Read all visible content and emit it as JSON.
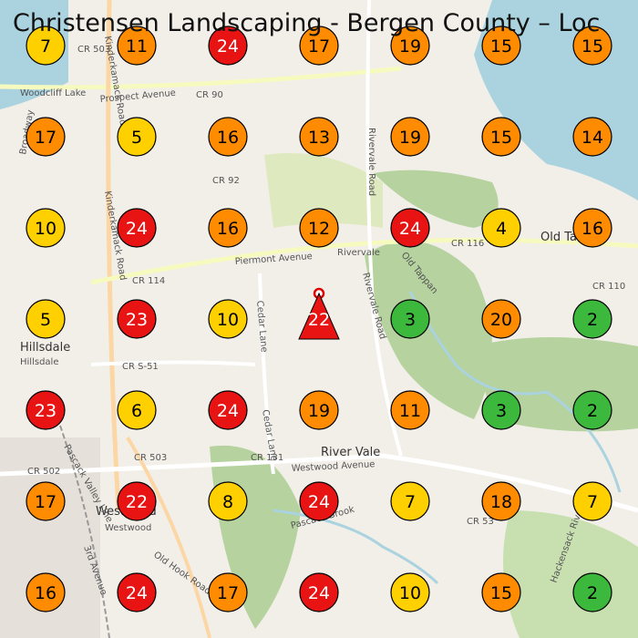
{
  "title": "Christensen Landscaping - Bergen County – Loc",
  "grid": {
    "rows": [
      [
        7,
        11,
        24,
        17,
        19,
        15,
        15
      ],
      [
        17,
        5,
        16,
        13,
        19,
        15,
        14
      ],
      [
        10,
        24,
        16,
        12,
        24,
        4,
        16
      ],
      [
        5,
        23,
        10,
        22,
        3,
        20,
        2
      ],
      [
        23,
        6,
        24,
        19,
        11,
        3,
        2
      ],
      [
        17,
        22,
        8,
        24,
        7,
        18,
        7
      ],
      [
        16,
        24,
        17,
        24,
        10,
        15,
        2
      ]
    ]
  },
  "map_labels": [
    "Woodcliff Lake",
    "Hillsdale",
    "Hillsdale",
    "Westwood",
    "Westwood",
    "River Vale",
    "Old Ta",
    "Prospect Avenue",
    "CR 90",
    "CR 503",
    "CR 92",
    "CR 116",
    "CR 114",
    "CR 110",
    "Piermont Avenue",
    "Rivervale",
    "Rivervale Road",
    "Rivervale Road",
    "Kinderkamack Road",
    "Kinderkamack Road",
    "Cedar Lane",
    "Cedar Lane",
    "CR S-51",
    "CR 131",
    "Westwood Avenue",
    "CR 53",
    "Pascack Brook",
    "Old Hook Road",
    "Broadway",
    "3rd Avenue",
    "CR 502",
    "CR 503",
    "Old Tappan",
    "Pascack Valley Line",
    "Hackensack River"
  ]
}
